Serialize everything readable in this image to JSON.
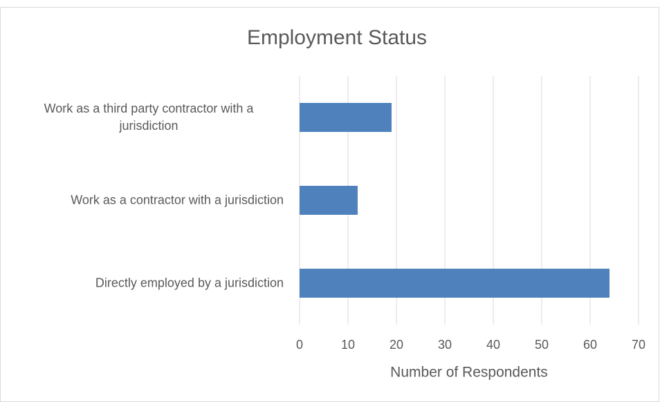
{
  "chart_data": {
    "type": "bar",
    "orientation": "horizontal",
    "title": "Employment Status",
    "categories": [
      "Work as a third party contractor with a jurisdiction",
      "Work as a contractor with a jurisdiction",
      "Directly employed by a jurisdiction"
    ],
    "values": [
      19,
      12,
      64
    ],
    "color": "#4f81bd",
    "xlabel": "Number of Respondents",
    "xlim": [
      0,
      70
    ],
    "xticks": [
      0,
      10,
      20,
      30,
      40,
      50,
      60,
      70
    ],
    "grid": true
  }
}
